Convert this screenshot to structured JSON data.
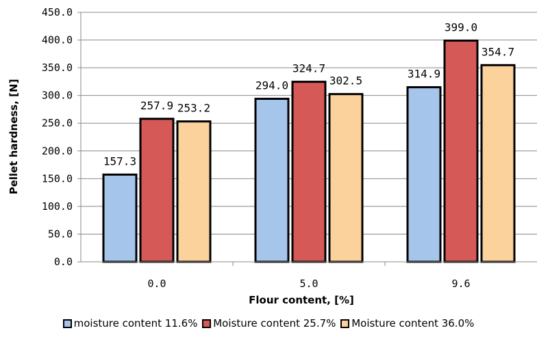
{
  "chart_data": {
    "type": "bar",
    "title": "",
    "xlabel": "Flour content, [%]",
    "ylabel": "Pellet hardness, [N]",
    "categories": [
      "0.0",
      "5.0",
      "9.6"
    ],
    "ylim": [
      0,
      450
    ],
    "yticks": [
      "0.0",
      "50.0",
      "100.0",
      "150.0",
      "200.0",
      "250.0",
      "300.0",
      "350.0",
      "400.0",
      "450.0"
    ],
    "grid": true,
    "legend_position": "bottom",
    "series": [
      {
        "name": "moisture content 11.6%",
        "color": "#a6c5eb",
        "values": [
          157.3,
          294.0,
          314.9
        ],
        "labels": [
          "157.3",
          "294.0",
          "314.9"
        ]
      },
      {
        "name": "Moisture content 25.7%",
        "color": "#d55a57",
        "values": [
          257.9,
          324.7,
          399.0
        ],
        "labels": [
          "257.9",
          "324.7",
          "399.0"
        ]
      },
      {
        "name": "Moisture content 36.0%",
        "color": "#fbd19c",
        "values": [
          253.2,
          302.5,
          354.7
        ],
        "labels": [
          "253.2",
          "302.5",
          "354.7"
        ]
      }
    ]
  }
}
